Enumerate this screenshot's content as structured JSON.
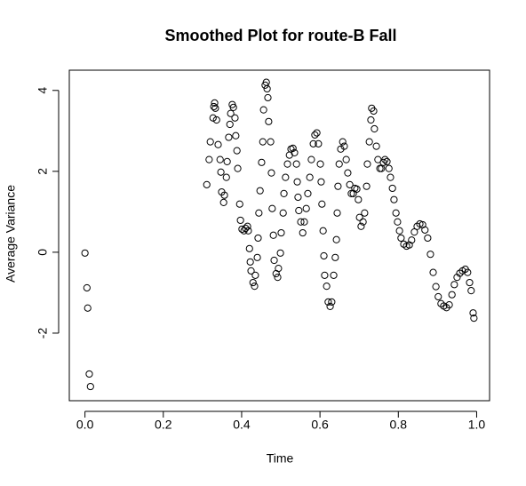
{
  "chart_data": {
    "type": "scatter",
    "title": "Smoothed Plot for route-B Fall",
    "xlabel": "Time",
    "ylabel": "Average Variance",
    "x": [
      0,
      0.005,
      0.007,
      0.011,
      0.014,
      0.311,
      0.317,
      0.32,
      0.327,
      0.329,
      0.331,
      0.333,
      0.336,
      0.34,
      0.345,
      0.347,
      0.349,
      0.354,
      0.356,
      0.361,
      0.363,
      0.367,
      0.37,
      0.372,
      0.376,
      0.379,
      0.383,
      0.385,
      0.388,
      0.39,
      0.395,
      0.397,
      0.401,
      0.406,
      0.41,
      0.415,
      0.417,
      0.42,
      0.422,
      0.424,
      0.429,
      0.433,
      0.435,
      0.44,
      0.442,
      0.444,
      0.447,
      0.451,
      0.454,
      0.456,
      0.46,
      0.463,
      0.465,
      0.467,
      0.469,
      0.474,
      0.476,
      0.478,
      0.481,
      0.483,
      0.488,
      0.492,
      0.494,
      0.499,
      0.501,
      0.506,
      0.508,
      0.512,
      0.517,
      0.522,
      0.526,
      0.531,
      0.535,
      0.54,
      0.542,
      0.544,
      0.546,
      0.551,
      0.556,
      0.56,
      0.565,
      0.569,
      0.574,
      0.578,
      0.583,
      0.587,
      0.592,
      0.596,
      0.601,
      0.603,
      0.605,
      0.608,
      0.61,
      0.612,
      0.617,
      0.621,
      0.626,
      0.63,
      0.635,
      0.639,
      0.642,
      0.644,
      0.646,
      0.649,
      0.653,
      0.658,
      0.662,
      0.667,
      0.671,
      0.676,
      0.68,
      0.685,
      0.689,
      0.694,
      0.698,
      0.701,
      0.705,
      0.71,
      0.714,
      0.719,
      0.721,
      0.726,
      0.73,
      0.732,
      0.737,
      0.739,
      0.744,
      0.748,
      0.753,
      0.757,
      0.762,
      0.766,
      0.771,
      0.776,
      0.78,
      0.785,
      0.789,
      0.794,
      0.798,
      0.803,
      0.807,
      0.814,
      0.821,
      0.828,
      0.834,
      0.841,
      0.848,
      0.855,
      0.862,
      0.868,
      0.875,
      0.882,
      0.889,
      0.896,
      0.902,
      0.909,
      0.916,
      0.923,
      0.93,
      0.937,
      0.943,
      0.95,
      0.957,
      0.964,
      0.971,
      0.977,
      0.982,
      0.986,
      0.991,
      0.993
    ],
    "values": [
      -0.02,
      -0.88,
      -1.38,
      -3.01,
      -3.32,
      1.67,
      2.29,
      2.73,
      3.32,
      3.6,
      3.69,
      3.56,
      3.27,
      2.66,
      2.29,
      1.98,
      1.49,
      1.23,
      1.41,
      1.85,
      2.24,
      2.84,
      3.16,
      3.43,
      3.65,
      3.58,
      3.32,
      2.88,
      2.51,
      2.07,
      1.19,
      0.79,
      0.57,
      0.53,
      0.59,
      0.64,
      0.53,
      0.09,
      -0.24,
      -0.46,
      -0.75,
      -0.84,
      -0.57,
      -0.13,
      0.35,
      0.97,
      1.52,
      2.22,
      2.73,
      3.52,
      4.13,
      4.2,
      4.04,
      3.82,
      3.23,
      2.73,
      1.96,
      1.08,
      0.42,
      -0.2,
      -0.53,
      -0.62,
      -0.4,
      -0.02,
      0.48,
      0.97,
      1.45,
      1.85,
      2.18,
      2.4,
      2.55,
      2.57,
      2.46,
      2.18,
      1.74,
      1.36,
      1.03,
      0.75,
      0.48,
      0.75,
      1.08,
      1.45,
      1.85,
      2.29,
      2.68,
      2.9,
      2.95,
      2.68,
      2.18,
      1.74,
      1.19,
      0.53,
      -0.09,
      -0.57,
      -0.84,
      -1.23,
      -1.34,
      -1.23,
      -0.57,
      -0.13,
      0.31,
      0.97,
      1.63,
      2.18,
      2.55,
      2.73,
      2.62,
      2.29,
      1.96,
      1.67,
      1.45,
      1.45,
      1.58,
      1.56,
      1.3,
      0.86,
      0.64,
      0.75,
      0.97,
      1.63,
      2.18,
      2.73,
      3.27,
      3.56,
      3.49,
      3.05,
      2.62,
      2.29,
      2.07,
      2.07,
      2.22,
      2.29,
      2.24,
      2.07,
      1.85,
      1.58,
      1.3,
      0.97,
      0.75,
      0.53,
      0.35,
      0.2,
      0.15,
      0.18,
      0.3,
      0.5,
      0.64,
      0.7,
      0.68,
      0.55,
      0.35,
      -0.05,
      -0.5,
      -0.85,
      -1.1,
      -1.27,
      -1.33,
      -1.37,
      -1.3,
      -1.05,
      -0.8,
      -0.62,
      -0.52,
      -0.46,
      -0.42,
      -0.5,
      -0.75,
      -0.95,
      -1.5,
      -1.63
    ],
    "color": "#000000",
    "xlim": [
      -0.04,
      1.033
    ],
    "ylim": [
      -3.67,
      4.5
    ],
    "xticks": [
      {
        "value": 0,
        "label": "0.0"
      },
      0.2,
      0.4,
      0.6,
      0.8,
      {
        "value": 1,
        "label": "1.0"
      }
    ],
    "yticks": [
      -2,
      0,
      2,
      4
    ],
    "grid": false
  }
}
